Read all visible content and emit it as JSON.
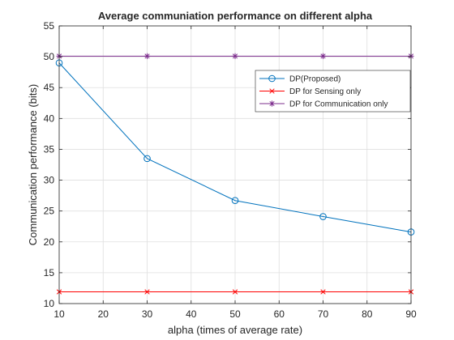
{
  "chart_data": {
    "type": "line",
    "title": "Average communiation performance on different alpha",
    "xlabel": "alpha (times of average rate)",
    "ylabel": "Communication performance (bits)",
    "xlim": [
      10,
      90
    ],
    "ylim": [
      10,
      55
    ],
    "xticks": [
      10,
      20,
      30,
      40,
      50,
      60,
      70,
      80,
      90
    ],
    "yticks": [
      10,
      15,
      20,
      25,
      30,
      35,
      40,
      45,
      50,
      55
    ],
    "grid": true,
    "legend_position": "top-right",
    "x": [
      10,
      30,
      50,
      70,
      90
    ],
    "series": [
      {
        "name": "DP(Proposed)",
        "values": [
          49.0,
          33.5,
          26.7,
          24.1,
          21.6
        ],
        "color": "#0072bd",
        "marker": "circle"
      },
      {
        "name": "DP for Sensing only",
        "values": [
          11.9,
          11.9,
          11.9,
          11.9,
          11.9
        ],
        "color": "#ff0000",
        "marker": "x"
      },
      {
        "name": "DP for Communication only",
        "values": [
          50.1,
          50.1,
          50.1,
          50.1,
          50.1
        ],
        "color": "#7e2f8e",
        "marker": "star"
      }
    ]
  }
}
